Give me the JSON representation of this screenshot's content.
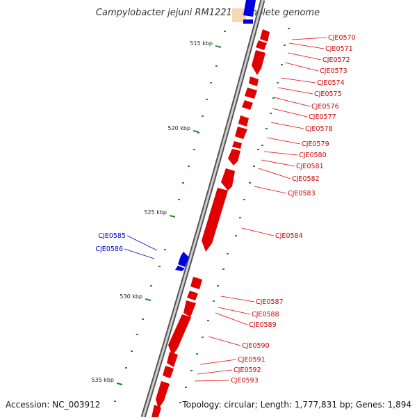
{
  "title": "Campylobacter jejuni RM1221, complete genome",
  "footer": {
    "accession": "Accession: NC_003912",
    "topology": "Topology: circular; Length: 1,777,831 bp; Genes: 1,894"
  },
  "colors": {
    "forward": "#e00000",
    "reverse": "#0000e0",
    "backbone": "#888888",
    "ticks": "#2a8a2a",
    "highlight": "#f5d9b0"
  },
  "ticks": [
    "515 kbp",
    "520 kbp",
    "525 kbp",
    "530 kbp",
    "535 kbp"
  ],
  "genes": [
    {
      "label": "CJE0570",
      "strand": "forward"
    },
    {
      "label": "CJE0571",
      "strand": "forward"
    },
    {
      "label": "CJE0572",
      "strand": "forward"
    },
    {
      "label": "CJE0573",
      "strand": "forward"
    },
    {
      "label": "CJE0574",
      "strand": "forward"
    },
    {
      "label": "CJE0575",
      "strand": "forward"
    },
    {
      "label": "CJE0576",
      "strand": "forward"
    },
    {
      "label": "CJE0577",
      "strand": "forward"
    },
    {
      "label": "CJE0578",
      "strand": "forward"
    },
    {
      "label": "CJE0579",
      "strand": "forward"
    },
    {
      "label": "CJE0580",
      "strand": "forward"
    },
    {
      "label": "CJE0581",
      "strand": "forward"
    },
    {
      "label": "CJE0582",
      "strand": "forward"
    },
    {
      "label": "CJE0583",
      "strand": "forward"
    },
    {
      "label": "CJE0584",
      "strand": "forward"
    },
    {
      "label": "CJE0585",
      "strand": "reverse"
    },
    {
      "label": "CJE0586",
      "strand": "reverse"
    },
    {
      "label": "CJE0587",
      "strand": "forward"
    },
    {
      "label": "CJE0588",
      "strand": "forward"
    },
    {
      "label": "CJE0589",
      "strand": "forward"
    },
    {
      "label": "CJE0590",
      "strand": "forward"
    },
    {
      "label": "CJE0591",
      "strand": "forward"
    },
    {
      "label": "CJE0592",
      "strand": "forward"
    },
    {
      "label": "CJE0593",
      "strand": "forward"
    }
  ]
}
